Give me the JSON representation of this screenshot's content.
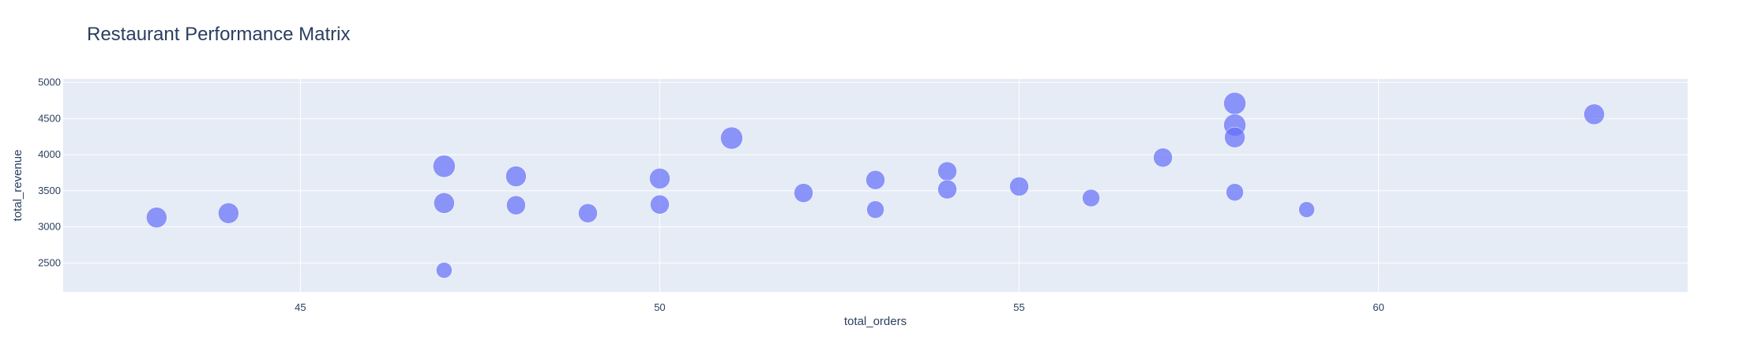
{
  "chart_data": {
    "type": "scatter",
    "title": "Restaurant Performance Matrix",
    "xlabel": "total_orders",
    "ylabel": "total_revenue",
    "xlim": [
      41.7,
      64.3
    ],
    "ylim": [
      2100,
      5050
    ],
    "xticks": [
      45,
      50,
      55,
      60
    ],
    "yticks": [
      2500,
      3000,
      3500,
      4000,
      4500,
      5000
    ],
    "grid": true,
    "marker_color": "#636efa",
    "plot_background": "#e5ecf6",
    "points": [
      {
        "x": 43,
        "y": 3130,
        "size": 13
      },
      {
        "x": 44,
        "y": 3190,
        "size": 13
      },
      {
        "x": 47,
        "y": 3840,
        "size": 14
      },
      {
        "x": 47,
        "y": 3330,
        "size": 13
      },
      {
        "x": 47,
        "y": 2400,
        "size": 10
      },
      {
        "x": 48,
        "y": 3700,
        "size": 13
      },
      {
        "x": 48,
        "y": 3300,
        "size": 12
      },
      {
        "x": 49,
        "y": 3190,
        "size": 12
      },
      {
        "x": 50,
        "y": 3670,
        "size": 13
      },
      {
        "x": 50,
        "y": 3310,
        "size": 12
      },
      {
        "x": 51,
        "y": 4230,
        "size": 14
      },
      {
        "x": 52,
        "y": 3470,
        "size": 12
      },
      {
        "x": 53,
        "y": 3650,
        "size": 12
      },
      {
        "x": 53,
        "y": 3240,
        "size": 11
      },
      {
        "x": 54,
        "y": 3770,
        "size": 12
      },
      {
        "x": 54,
        "y": 3520,
        "size": 12
      },
      {
        "x": 55,
        "y": 3560,
        "size": 12
      },
      {
        "x": 56,
        "y": 3400,
        "size": 11
      },
      {
        "x": 57,
        "y": 3960,
        "size": 12
      },
      {
        "x": 58,
        "y": 4710,
        "size": 14
      },
      {
        "x": 58,
        "y": 4410,
        "size": 14
      },
      {
        "x": 58,
        "y": 4240,
        "size": 13
      },
      {
        "x": 58,
        "y": 3480,
        "size": 11
      },
      {
        "x": 59,
        "y": 3240,
        "size": 10
      },
      {
        "x": 63,
        "y": 4560,
        "size": 13
      }
    ]
  }
}
